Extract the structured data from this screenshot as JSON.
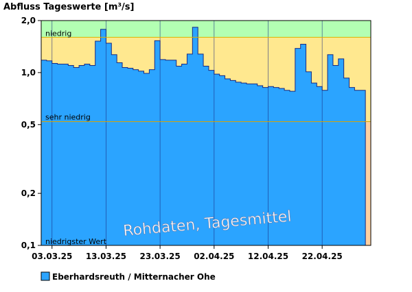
{
  "chart_data": {
    "type": "area",
    "title": "Abfluss Tageswerte [m³/s]",
    "y_scale": "log",
    "ylim": [
      0.1,
      2.0
    ],
    "yticks": [
      {
        "value": 2.0,
        "label": "2,0"
      },
      {
        "value": 1.0,
        "label": "1,0"
      },
      {
        "value": 0.5,
        "label": "0,5"
      },
      {
        "value": 0.2,
        "label": "0,2"
      },
      {
        "value": 0.1,
        "label": "0,1"
      }
    ],
    "x_start": "01.03.25",
    "x_end": "30.04.25",
    "xticks": [
      "03.03.25",
      "13.03.25",
      "23.03.25",
      "02.04.25",
      "12.04.25",
      "22.04.25"
    ],
    "bands": [
      {
        "label": "",
        "from": 1.6,
        "to": 2.0,
        "color": "#b3ffb3"
      },
      {
        "label": "niedrig",
        "from": 0.52,
        "to": 1.6,
        "color": "#ffe88f"
      },
      {
        "label": "sehr niedrig",
        "from": 0.1,
        "to": 0.52,
        "color": "#ffd0a0"
      }
    ],
    "reference_label": "niedrigster Wert",
    "watermark": "Rohdaten, Tagesmittel",
    "series": [
      {
        "name": "Eberhardsreuth / Mitternacher Ohe",
        "color": "#2ba4ff",
        "dates": [
          "01.03.25",
          "02.03.25",
          "03.03.25",
          "04.03.25",
          "05.03.25",
          "06.03.25",
          "07.03.25",
          "08.03.25",
          "09.03.25",
          "10.03.25",
          "11.03.25",
          "12.03.25",
          "13.03.25",
          "14.03.25",
          "15.03.25",
          "16.03.25",
          "17.03.25",
          "18.03.25",
          "19.03.25",
          "20.03.25",
          "21.03.25",
          "22.03.25",
          "23.03.25",
          "24.03.25",
          "25.03.25",
          "26.03.25",
          "27.03.25",
          "28.03.25",
          "29.03.25",
          "30.03.25",
          "31.03.25",
          "01.04.25",
          "02.04.25",
          "03.04.25",
          "04.04.25",
          "05.04.25",
          "06.04.25",
          "07.04.25",
          "08.04.25",
          "09.04.25",
          "10.04.25",
          "11.04.25",
          "12.04.25",
          "13.04.25",
          "14.04.25",
          "15.04.25",
          "16.04.25",
          "17.04.25",
          "18.04.25",
          "19.04.25",
          "20.04.25",
          "21.04.25",
          "22.04.25",
          "23.04.25",
          "24.04.25",
          "25.04.25",
          "26.04.25",
          "27.04.25",
          "28.04.25",
          "29.04.25"
        ],
        "values": [
          1.18,
          1.17,
          1.13,
          1.12,
          1.12,
          1.1,
          1.07,
          1.1,
          1.12,
          1.1,
          1.52,
          1.78,
          1.48,
          1.27,
          1.14,
          1.07,
          1.06,
          1.04,
          1.02,
          0.99,
          1.04,
          1.53,
          1.19,
          1.18,
          1.18,
          1.09,
          1.12,
          1.28,
          1.83,
          1.28,
          1.09,
          1.03,
          0.98,
          0.96,
          0.92,
          0.9,
          0.88,
          0.87,
          0.86,
          0.86,
          0.84,
          0.82,
          0.83,
          0.82,
          0.81,
          0.79,
          0.78,
          1.38,
          1.46,
          1.01,
          0.87,
          0.83,
          0.79,
          1.27,
          1.1,
          1.2,
          0.93,
          0.82,
          0.79,
          0.79
        ]
      }
    ],
    "grid": true,
    "legend_position": "bottom-left"
  }
}
